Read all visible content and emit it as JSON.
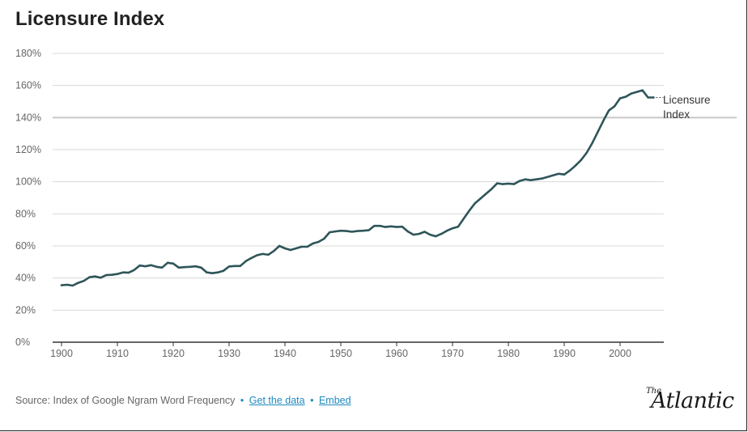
{
  "chart_data": {
    "type": "line",
    "title": "Licensure Index",
    "xlabel": "",
    "ylabel": "",
    "xlim": [
      1900,
      2007
    ],
    "ylim": [
      0,
      180
    ],
    "x_ticks": [
      1900,
      1910,
      1920,
      1930,
      1940,
      1950,
      1960,
      1970,
      1980,
      1990,
      2000
    ],
    "y_ticks": [
      0,
      20,
      40,
      60,
      80,
      100,
      120,
      140,
      160,
      180
    ],
    "y_tick_labels": [
      "0%",
      "20%",
      "40%",
      "60%",
      "80%",
      "100%",
      "120%",
      "140%",
      "160%",
      "180%"
    ],
    "reference_line": 140,
    "series": [
      {
        "name": "Licensure Index",
        "label_lines": [
          "Licensure",
          "Index"
        ],
        "color": "#2e5559",
        "x": [
          1900,
          1901,
          1902,
          1903,
          1904,
          1905,
          1906,
          1907,
          1908,
          1909,
          1910,
          1911,
          1912,
          1913,
          1914,
          1915,
          1916,
          1917,
          1918,
          1919,
          1920,
          1921,
          1922,
          1923,
          1924,
          1925,
          1926,
          1927,
          1928,
          1929,
          1930,
          1931,
          1932,
          1933,
          1934,
          1935,
          1936,
          1937,
          1938,
          1939,
          1940,
          1941,
          1942,
          1943,
          1944,
          1945,
          1946,
          1947,
          1948,
          1949,
          1950,
          1951,
          1952,
          1953,
          1954,
          1955,
          1956,
          1957,
          1958,
          1959,
          1960,
          1961,
          1962,
          1963,
          1964,
          1965,
          1966,
          1967,
          1968,
          1969,
          1970,
          1971,
          1972,
          1973,
          1974,
          1975,
          1976,
          1977,
          1978,
          1979,
          1980,
          1981,
          1982,
          1983,
          1984,
          1985,
          1986,
          1987,
          1988,
          1989,
          1990,
          1991,
          1992,
          1993,
          1994,
          1995,
          1996,
          1997,
          1998,
          1999,
          2000,
          2001,
          2002,
          2003,
          2004,
          2005,
          2006
        ],
        "values": [
          35.5,
          35.8,
          35.3,
          37,
          38.2,
          40.5,
          41,
          40.2,
          41.8,
          42,
          42.5,
          43.5,
          43.3,
          45,
          47.8,
          47.3,
          48,
          47,
          46.5,
          49.5,
          49,
          46.5,
          46.8,
          47,
          47.3,
          46.5,
          43.5,
          43,
          43.5,
          44.5,
          47.2,
          47.5,
          47.5,
          50.5,
          52.5,
          54.2,
          55,
          54.5,
          56.8,
          60,
          58.5,
          57.5,
          58.5,
          59.5,
          59.5,
          61.5,
          62.5,
          64.5,
          68.5,
          69,
          69.5,
          69.3,
          68.8,
          69.3,
          69.5,
          69.8,
          72.5,
          72.5,
          71.8,
          72.2,
          71.8,
          72,
          69,
          67,
          67.5,
          68.8,
          67,
          66,
          67.5,
          69.5,
          71,
          72,
          77,
          82,
          86.5,
          89.5,
          92.5,
          95.5,
          99,
          98.5,
          98.8,
          98.5,
          100.5,
          101.5,
          101,
          101.5,
          102,
          103,
          104,
          105,
          104.5,
          107,
          110,
          113.5,
          118,
          124,
          131,
          138,
          144.5,
          147,
          152,
          153,
          155,
          156,
          157,
          152.5,
          152.5
        ]
      }
    ]
  },
  "footer": {
    "source_text": "Source: Index of Google Ngram Word Frequency",
    "bullet_1": "•",
    "get_data_link": "Get the data",
    "bullet_2": "•",
    "embed_link": "Embed"
  },
  "logo": {
    "small": "The",
    "name": "Atlantic"
  }
}
